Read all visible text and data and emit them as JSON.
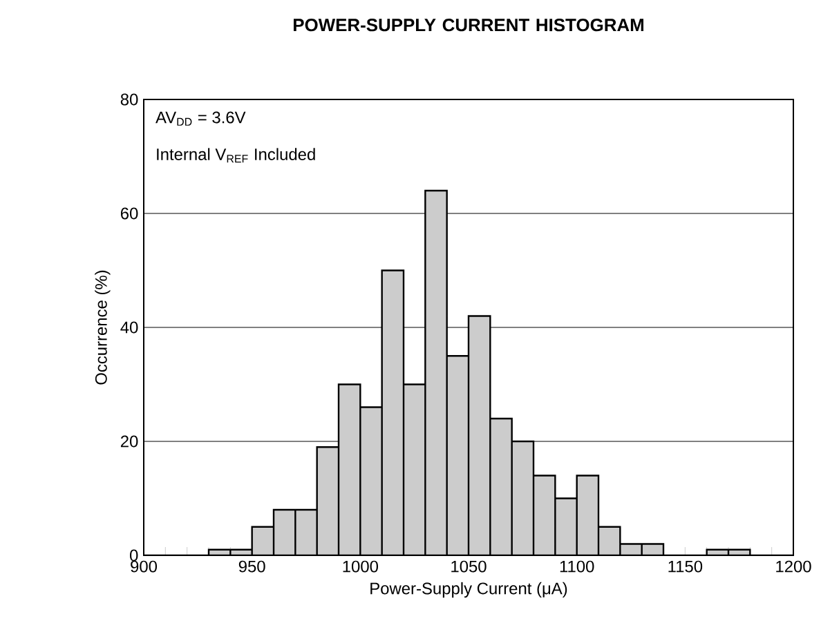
{
  "chart_data": {
    "type": "histogram",
    "title": "POWER-SUPPLY CURRENT HISTOGRAM",
    "xlabel": "Power-Supply Current (μA)",
    "ylabel": "Occurrence (%)",
    "bins": [
      900,
      910,
      920,
      930,
      940,
      950,
      960,
      970,
      980,
      990,
      1000,
      1010,
      1020,
      1030,
      1040,
      1050,
      1060,
      1070,
      1080,
      1090,
      1100,
      1110,
      1120,
      1130,
      1140,
      1150,
      1160,
      1170,
      1180,
      1190,
      1200
    ],
    "values": [
      0,
      0,
      0,
      1,
      1,
      5,
      8,
      8,
      19,
      30,
      26,
      50,
      30,
      64,
      35,
      42,
      24,
      20,
      14,
      10,
      14,
      5,
      2,
      2,
      0,
      0,
      1,
      1,
      0,
      0
    ],
    "color": "#cccccc",
    "xlim": [
      900,
      1200
    ],
    "ylim": [
      0,
      80
    ],
    "xticks": [
      900,
      950,
      1000,
      1050,
      1100,
      1150,
      1200
    ],
    "yticks": [
      0,
      20,
      40,
      60,
      80
    ],
    "grid": "y",
    "annotations": [
      "AV$_{DD}$ = 3.6V",
      "Internal V$_{REF}$ Included"
    ]
  }
}
